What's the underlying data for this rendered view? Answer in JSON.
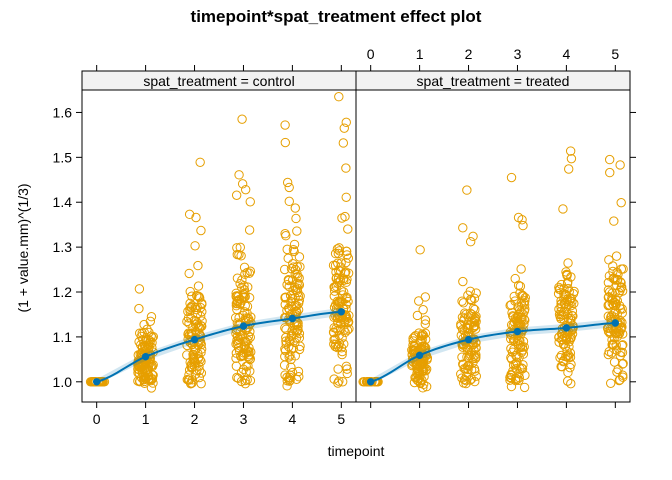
{
  "chart_data": {
    "type": "scatter",
    "title": "timepoint*spat_treatment effect plot",
    "xlabel": "timepoint",
    "ylabel": "(1 + value.mm)^(1/3)",
    "x_ticks": [
      0,
      1,
      2,
      3,
      4,
      5
    ],
    "y_ticks": [
      1.0,
      1.1,
      1.2,
      1.3,
      1.4,
      1.5,
      1.6
    ],
    "xlim": [
      -0.3,
      5.3
    ],
    "ylim": [
      0.955,
      1.65
    ],
    "grid": false,
    "colors": {
      "points": "#E69F00",
      "line": "#0072B2",
      "frame": "#000000",
      "strip_bg": "#f2f2f2"
    },
    "panels": [
      {
        "strip": "spat_treatment = control",
        "fit": {
          "x": [
            0,
            1,
            2,
            3,
            4,
            5
          ],
          "y": [
            1.0,
            1.056,
            1.094,
            1.124,
            1.141,
            1.156
          ],
          "lower": [
            0.994,
            1.047,
            1.085,
            1.115,
            1.132,
            1.147
          ],
          "upper": [
            1.006,
            1.065,
            1.103,
            1.133,
            1.15,
            1.165
          ]
        },
        "points": {
          "x": [
            0,
            1,
            2,
            3,
            4,
            5
          ],
          "n": [
            30,
            120,
            110,
            120,
            120,
            120
          ],
          "center": [
            1.0,
            1.05,
            1.1,
            1.13,
            1.15,
            1.16
          ],
          "spread": [
            0,
            0.04,
            0.06,
            0.075,
            0.08,
            0.085
          ],
          "outliers": [
            [],
            [
              1.207,
              1.163,
              1.145
            ],
            [
              1.489,
              1.373,
              1.366,
              1.337,
              1.303
            ],
            [
              1.585,
              1.461,
              1.441,
              1.428,
              1.401
            ],
            [
              1.572,
              1.533,
              1.444,
              1.433,
              1.402,
              1.387
            ],
            [
              1.635,
              1.578,
              1.565,
              1.532,
              1.476,
              1.411
            ]
          ]
        }
      },
      {
        "strip": "spat_treatment = treated",
        "fit": {
          "x": [
            0,
            1,
            2,
            3,
            4,
            5
          ],
          "y": [
            1.0,
            1.059,
            1.094,
            1.112,
            1.12,
            1.131
          ],
          "lower": [
            0.994,
            1.05,
            1.085,
            1.103,
            1.111,
            1.122
          ],
          "upper": [
            1.006,
            1.068,
            1.103,
            1.121,
            1.129,
            1.14
          ]
        },
        "points": {
          "x": [
            0,
            1,
            2,
            3,
            4,
            5
          ],
          "n": [
            30,
            110,
            110,
            110,
            110,
            110
          ],
          "center": [
            1.0,
            1.05,
            1.09,
            1.11,
            1.12,
            1.13
          ],
          "spread": [
            0,
            0.035,
            0.055,
            0.065,
            0.065,
            0.07
          ],
          "outliers": [
            [],
            [
              1.294,
              1.189,
              1.18
            ],
            [
              1.427,
              1.343,
              1.324,
              1.312
            ],
            [
              1.455,
              1.366,
              1.361,
              1.348
            ],
            [
              1.514,
              1.497,
              1.474,
              1.385
            ],
            [
              1.495,
              1.483,
              1.466,
              1.399,
              1.358
            ]
          ]
        }
      }
    ]
  }
}
